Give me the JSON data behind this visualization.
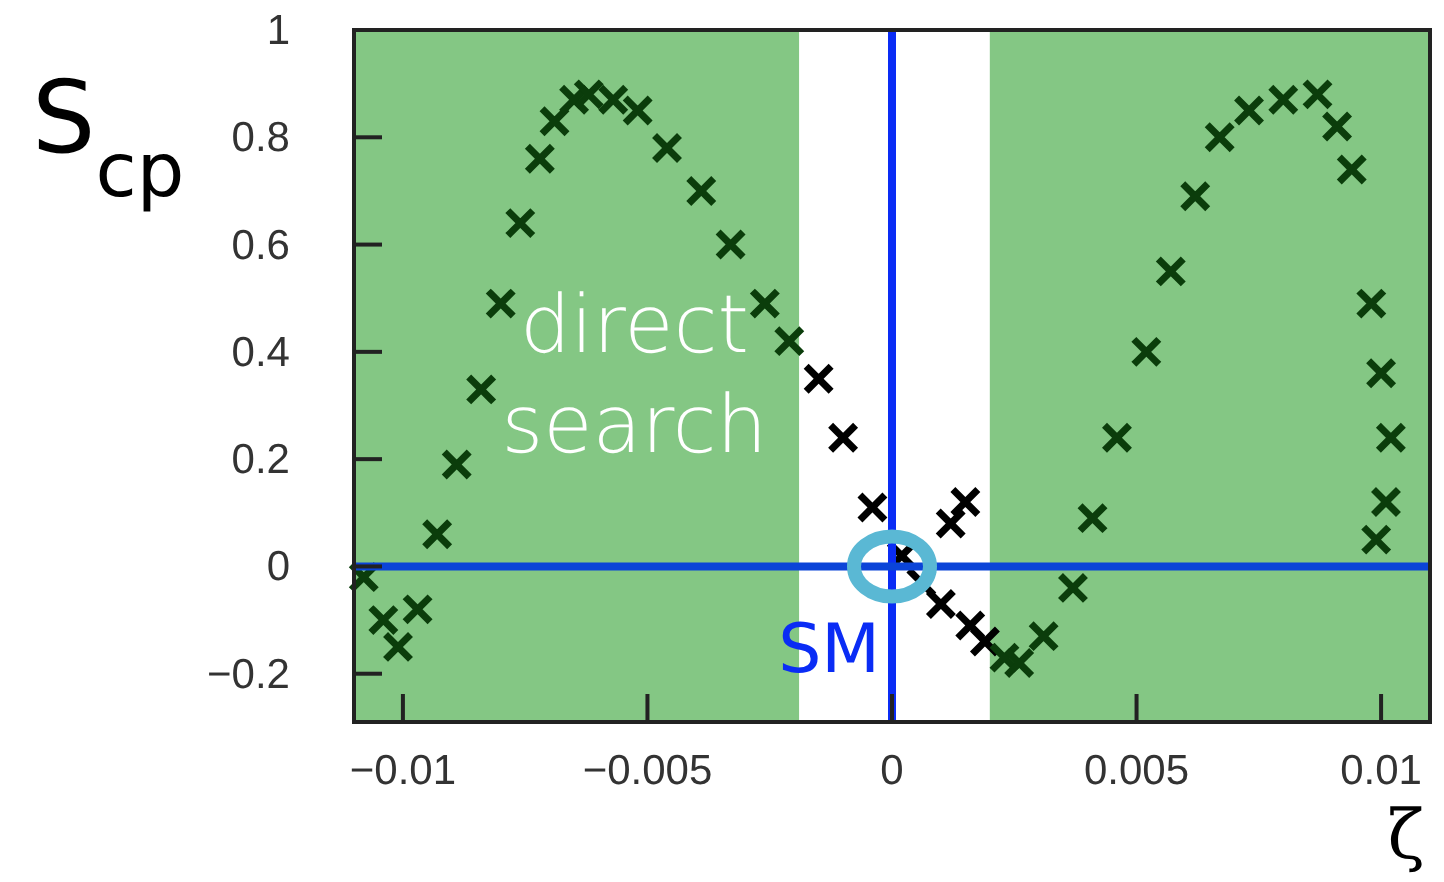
{
  "chart_data": {
    "type": "scatter",
    "xlabel": "ζ",
    "ylabel": "S$_{cp}$",
    "xlim": [
      -0.011,
      0.011
    ],
    "ylim": [
      -0.29,
      1
    ],
    "xticks": [
      {
        "value": -0.01,
        "label": "−0.01"
      },
      {
        "value": -0.005,
        "label": "−0.005"
      },
      0,
      0.005,
      0.01
    ],
    "yticks": [
      {
        "value": -0.2,
        "label": "−0.2"
      },
      0,
      0.2,
      0.4,
      0.6,
      0.8,
      1
    ],
    "marker": "cross",
    "grid": false,
    "bands": [
      {
        "axis": "x",
        "from": -0.011,
        "to": -0.0019,
        "label": "direct search",
        "color": "#84c784"
      },
      {
        "axis": "x",
        "from": 0.002,
        "to": 0.011,
        "color": "#84c784"
      }
    ],
    "ref_lines": [
      {
        "axis": "x",
        "value": 0,
        "color": "#0a2cf5"
      },
      {
        "axis": "y",
        "value": 0,
        "color": "#0b44d8"
      }
    ],
    "annotations": [
      {
        "text": "SM",
        "x": 0,
        "y": 0
      }
    ],
    "x": [
      -0.0108,
      -0.0104,
      -0.0101,
      -0.0097,
      -0.0093,
      -0.0089,
      -0.0084,
      -0.008,
      -0.0076,
      -0.0072,
      -0.0069,
      -0.0065,
      -0.0062,
      -0.0057,
      -0.0052,
      -0.0046,
      -0.0039,
      -0.0033,
      -0.0026,
      -0.0021,
      -0.0015,
      -0.001,
      -0.0004,
      0.0002,
      0.0006,
      0.001,
      0.0012,
      0.0015,
      0.0016,
      0.0019,
      0.0023,
      0.0026,
      0.0031,
      0.0037,
      0.0041,
      0.0046,
      0.0052,
      0.0057,
      0.0062,
      0.0067,
      0.0073,
      0.008,
      0.0087,
      0.0091,
      0.0094,
      0.0098,
      0.01,
      0.0102,
      0.0101,
      0.0099
    ],
    "values": [
      -0.02,
      -0.1,
      -0.15,
      -0.08,
      0.06,
      0.19,
      0.33,
      0.49,
      0.64,
      0.76,
      0.83,
      0.87,
      0.88,
      0.87,
      0.85,
      0.78,
      0.7,
      0.6,
      0.49,
      0.42,
      0.35,
      0.24,
      0.11,
      0.02,
      -0.03,
      -0.07,
      0.08,
      0.12,
      -0.11,
      -0.14,
      -0.17,
      -0.18,
      -0.13,
      -0.04,
      0.09,
      0.24,
      0.4,
      0.55,
      0.69,
      0.8,
      0.85,
      0.87,
      0.88,
      0.82,
      0.74,
      0.49,
      0.36,
      0.24,
      0.12,
      0.05
    ],
    "colors": [
      "#0b3d0b",
      "#0b3d0b",
      "#0b3d0b",
      "#0b3d0b",
      "#0b3d0b",
      "#0b3d0b",
      "#0b3d0b",
      "#0b3d0b",
      "#0b3d0b",
      "#0b3d0b",
      "#0b3d0b",
      "#0b3d0b",
      "#0b3d0b",
      "#0b3d0b",
      "#0b3d0b",
      "#0b3d0b",
      "#0b3d0b",
      "#0b3d0b",
      "#0b3d0b",
      "#0b3d0b",
      "#000000",
      "#000000",
      "#000000",
      "#000000",
      "#000000",
      "#000000",
      "#000000",
      "#000000",
      "#000000",
      "#000000",
      "#0b3d0b",
      "#0b3d0b",
      "#0b3d0b",
      "#0b3d0b",
      "#0b3d0b",
      "#0b3d0b",
      "#0b3d0b",
      "#0b3d0b",
      "#0b3d0b",
      "#0b3d0b",
      "#0b3d0b",
      "#0b3d0b",
      "#0b3d0b",
      "#0b3d0b",
      "#0b3d0b",
      "#0b3d0b",
      "#0b3d0b",
      "#0b3d0b",
      "#0b3d0b",
      "#0b3d0b"
    ]
  }
}
